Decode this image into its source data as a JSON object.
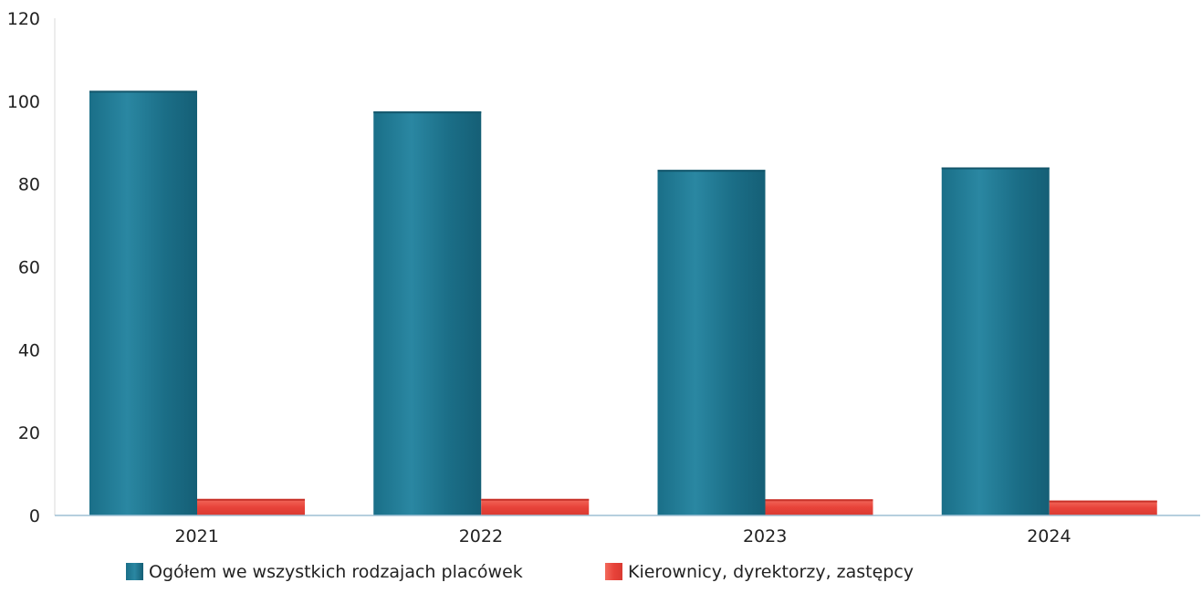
{
  "chart_data": {
    "type": "bar",
    "categories": [
      "2021",
      "2022",
      "2023",
      "2024"
    ],
    "series": [
      {
        "name": "Ogółem we wszystkich rodzajach placówek",
        "values": [
          102.5,
          97.5,
          83.4,
          84.0
        ],
        "color": "#1e7590"
      },
      {
        "name": "Kierownicy, dyrektorzy, zastępcy",
        "values": [
          4.0,
          4.0,
          3.9,
          3.6
        ],
        "color": "#e8433a"
      }
    ],
    "yticks": [
      0,
      20,
      40,
      60,
      80,
      100,
      120
    ],
    "ylim": [
      0,
      120
    ],
    "grid": false,
    "legend_position": "bottom"
  }
}
